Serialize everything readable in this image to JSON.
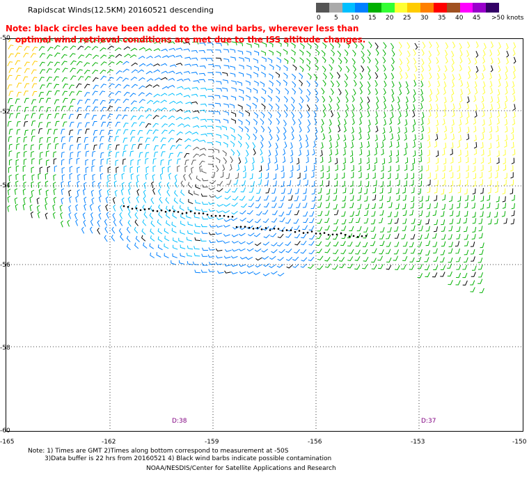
{
  "title": "Rapidscat Winds(12.5KM) 20160521 descending",
  "notes": [
    "Note: black circles have been added to the wind barbs, wherever less than",
    "optimal wind retrieval conditions are met due to the ISS altitude changes."
  ],
  "legend": {
    "colors": [
      "#555555",
      "#aaaaaa",
      "#00bfff",
      "#0080ff",
      "#00b000",
      "#33ff33",
      "#ffff33",
      "#ffcc00",
      "#ff8000",
      "#ff0000",
      "#a05020",
      "#ff00ff",
      "#9900cc",
      "#330066"
    ],
    "labels": [
      "0",
      "5",
      "10",
      "15",
      "20",
      "25",
      "30",
      "35",
      "40",
      "45",
      ">50 knots"
    ]
  },
  "lat_labels": [
    "-50",
    "-52",
    "-54",
    "-56",
    "-58",
    "-60"
  ],
  "lon_labels": [
    "-165",
    "-162",
    "-159",
    "-156",
    "-153",
    "-150"
  ],
  "time_labels": [
    "D:38",
    "D:37"
  ],
  "footnotes": [
    "Note: 1) Times are GMT 2)Times along bottom correspond to measurement at -50S",
    "3)Data buffer is 22 hrs from 20160521 4) Black wind barbs indicate possible contamination",
    "NOAA/NESDIS/Center for Satellite Applications and Research"
  ]
}
